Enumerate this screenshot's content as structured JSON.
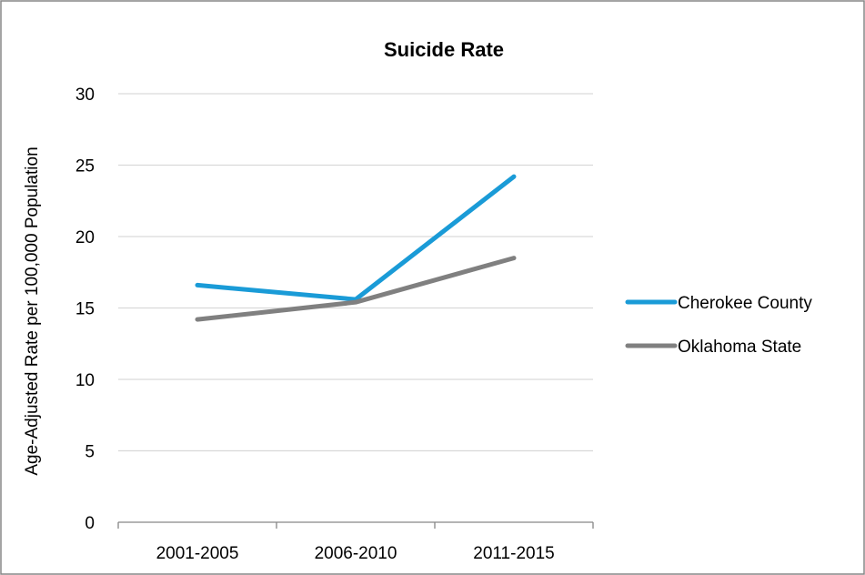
{
  "chart_data": {
    "type": "line",
    "title": "Suicide Rate",
    "xlabel": "",
    "ylabel": "Age-Adjusted Rate per 100,000 Population",
    "categories": [
      "2001-2005",
      "2006-2010",
      "2011-2015"
    ],
    "ylim": [
      0,
      30
    ],
    "yticks": [
      0,
      5,
      10,
      15,
      20,
      25,
      30
    ],
    "grid": true,
    "legend_position": "right",
    "series": [
      {
        "name": "Cherokee County",
        "values": [
          16.6,
          15.6,
          24.2
        ],
        "color": "#1a9bd7"
      },
      {
        "name": "Oklahoma State",
        "values": [
          14.2,
          15.4,
          18.5
        ],
        "color": "#808080"
      }
    ]
  },
  "colors": {
    "frame": "#868686",
    "gridline": "#d9d9d9",
    "axis": "#868686"
  }
}
